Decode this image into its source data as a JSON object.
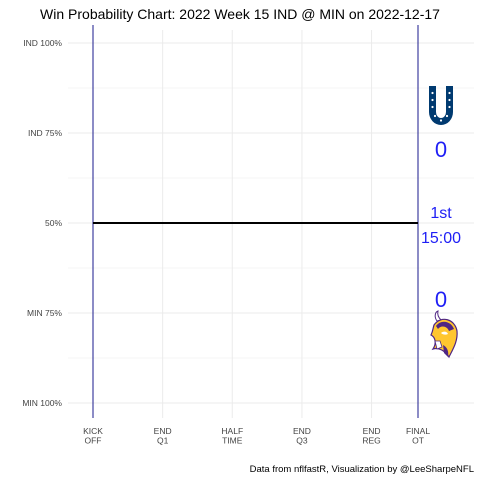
{
  "chart_data": {
    "type": "line",
    "title": "Win Probability Chart: 2022 Week 15 IND @ MIN on 2022-12-17",
    "y_tick_labels": [
      "IND 100%",
      "IND 75%",
      "50%",
      "MIN 75%",
      "MIN 100%"
    ],
    "y_tick_values": [
      1.0,
      0.75,
      0.5,
      0.25,
      0.0
    ],
    "ylim": [
      0,
      1
    ],
    "x_tick_labels": [
      [
        "KICK",
        "OFF"
      ],
      [
        "END",
        "Q1"
      ],
      [
        "HALF",
        "TIME"
      ],
      [
        "END",
        "Q3"
      ],
      [
        "END",
        "REG"
      ],
      [
        "FINAL",
        "OT"
      ]
    ],
    "x_tick_values": [
      0,
      15,
      30,
      45,
      60,
      70
    ],
    "xlim": [
      0,
      70
    ],
    "series": [
      {
        "x": [
          0,
          70
        ],
        "y": [
          0.5,
          0.5
        ]
      }
    ],
    "home_score": "0",
    "away_score": "0",
    "quarter": "1st",
    "clock": "15:00",
    "caption": "Data from nflfastR, Visualization by @LeeSharpeNFL",
    "grid": true,
    "colors": {
      "line": "#000000",
      "boundary": "#1a1a8c",
      "score": "#1f1ff5",
      "colts_blue": "#003a70",
      "vikings_purple": "#4f2683",
      "vikings_gold": "#ffc62f"
    },
    "logos": [
      "colts-logo",
      "vikings-logo"
    ]
  }
}
